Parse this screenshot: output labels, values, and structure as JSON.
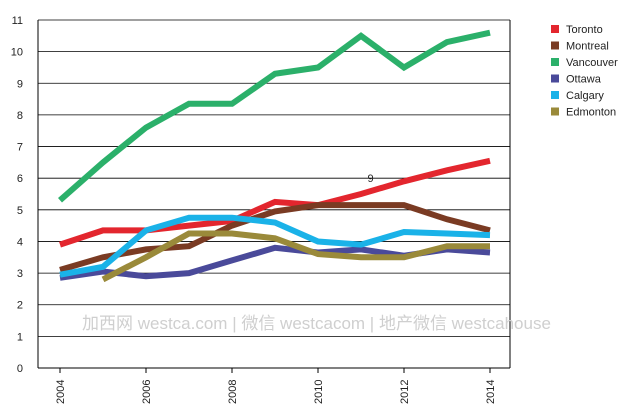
{
  "chart_data": {
    "type": "line",
    "title": "",
    "xlabel": "",
    "ylabel": "",
    "x": [
      2004,
      2005,
      2006,
      2007,
      2008,
      2009,
      2010,
      2011,
      2012,
      2013,
      2014
    ],
    "xlim": [
      2004,
      2014
    ],
    "ylim": [
      0,
      11
    ],
    "xticks": [
      "2004",
      "2006",
      "2008",
      "2010",
      "2012",
      "2014"
    ],
    "yticks": [
      "0",
      "1",
      "2",
      "3",
      "4",
      "5",
      "6",
      "7",
      "8",
      "9",
      "10",
      "11"
    ],
    "grid": "horizontal",
    "legend_position": "right",
    "series": [
      {
        "name": "Toronto",
        "color": "#e3262e",
        "values": [
          3.9,
          4.35,
          4.35,
          4.5,
          4.65,
          5.25,
          5.15,
          5.5,
          5.9,
          6.25,
          6.55
        ]
      },
      {
        "name": "Montreal",
        "color": "#7a3b23",
        "values": [
          3.1,
          3.5,
          3.75,
          3.85,
          4.5,
          4.95,
          5.15,
          5.15,
          5.15,
          4.7,
          4.35
        ]
      },
      {
        "name": "Vancouver",
        "color": "#2bb06a",
        "values": [
          5.3,
          6.5,
          7.6,
          8.35,
          8.35,
          9.3,
          9.5,
          10.5,
          9.5,
          10.3,
          10.6
        ]
      },
      {
        "name": "Ottawa",
        "color": "#4a4a9a",
        "values": [
          2.85,
          3.05,
          2.9,
          3.0,
          3.4,
          3.8,
          3.65,
          3.75,
          3.55,
          3.75,
          3.65
        ]
      },
      {
        "name": "Calgary",
        "color": "#1ab2e8",
        "values": [
          2.95,
          3.2,
          4.35,
          4.75,
          4.75,
          4.6,
          4.0,
          3.9,
          4.3,
          4.25,
          4.2
        ]
      },
      {
        "name": "Edmonton",
        "color": "#9a8a3a",
        "values": [
          null,
          2.8,
          3.5,
          4.25,
          4.25,
          4.1,
          3.6,
          3.5,
          3.5,
          3.85,
          3.85
        ]
      }
    ],
    "annotations": [
      {
        "text": "9",
        "x": 2011.15,
        "y": 6.0
      }
    ]
  },
  "watermark": "加西网 westca.com | 微信 westcacom | 地产微信 westcahouse"
}
